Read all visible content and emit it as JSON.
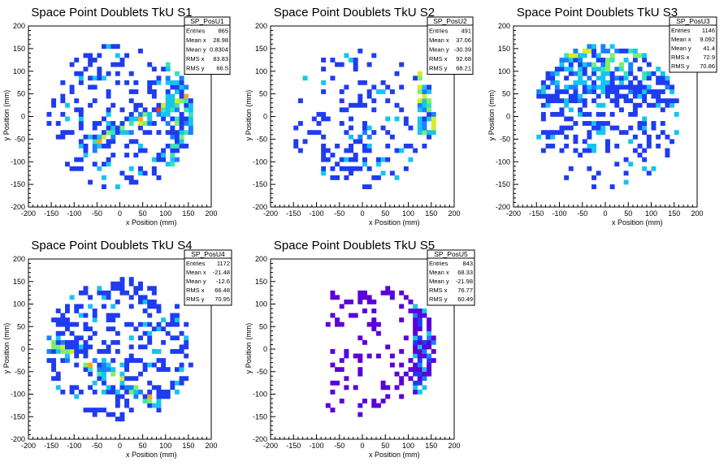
{
  "chart_data": [
    {
      "type": "heatmap",
      "title": "Space Point Doublets TkU S1",
      "xlabel": "x Position (mm)",
      "ylabel": "y Position (mm)",
      "xlim": [
        -200,
        200
      ],
      "ylim": [
        -200,
        200
      ],
      "xticks": [
        -200,
        -150,
        -100,
        -50,
        0,
        50,
        100,
        150,
        200
      ],
      "yticks": [
        -200,
        -150,
        -100,
        -50,
        0,
        50,
        100,
        150,
        200
      ],
      "palette": "rainbow",
      "stats": {
        "name": "SP_PosU1",
        "rows": [
          {
            "label": "Entries",
            "value": "865"
          },
          {
            "label": "Mean x",
            "value": "28.98"
          },
          {
            "label": "Mean y",
            "value": "0.8304"
          },
          {
            "label": "RMS x",
            "value": "83.83"
          },
          {
            "label": "RMS y",
            "value": "66.5"
          }
        ]
      },
      "stats_size": "large",
      "mean_x": 28.98,
      "mean_y": 0.8304,
      "rms_x": 83.83,
      "rms_y": 66.5,
      "fill": 0.42,
      "band": "diagonal-S1",
      "seed": 11
    },
    {
      "type": "heatmap",
      "title": "Space Point Doublets TkU S2",
      "xlabel": "x Position (mm)",
      "ylabel": "y Position (mm)",
      "xlim": [
        -200,
        200
      ],
      "ylim": [
        -200,
        200
      ],
      "xticks": [
        -200,
        -150,
        -100,
        -50,
        0,
        50,
        100,
        150,
        200
      ],
      "yticks": [
        -200,
        -150,
        -100,
        -50,
        0,
        50,
        100,
        150,
        200
      ],
      "palette": "rainbow",
      "stats": {
        "name": "SP_PosU2",
        "rows": [
          {
            "label": "Entries",
            "value": "491"
          },
          {
            "label": "Mean x",
            "value": "37.06"
          },
          {
            "label": "Mean y",
            "value": "-30.39"
          },
          {
            "label": "RMS x",
            "value": "92.68"
          },
          {
            "label": "RMS y",
            "value": "68.21"
          }
        ]
      },
      "stats_size": "large",
      "mean_x": 37.06,
      "mean_y": -30.39,
      "rms_x": 92.68,
      "rms_y": 68.21,
      "fill": 0.26,
      "band": "diagonal-S2",
      "seed": 23
    },
    {
      "type": "heatmap",
      "title": "Space Point Doublets TkU S3",
      "xlabel": "x Position (mm)",
      "ylabel": "y Position (mm)",
      "xlim": [
        -200,
        200
      ],
      "ylim": [
        -200,
        200
      ],
      "xticks": [
        -200,
        -150,
        -100,
        -50,
        0,
        50,
        100,
        150,
        200
      ],
      "yticks": [
        -200,
        -150,
        -100,
        -50,
        0,
        50,
        100,
        150,
        200
      ],
      "palette": "rainbow",
      "stats": {
        "name": "SP_PosU3",
        "rows": [
          {
            "label": "Entries",
            "value": "1146"
          },
          {
            "label": "Mean x",
            "value": "9.092"
          },
          {
            "label": "Mean y",
            "value": "41.4"
          },
          {
            "label": "RMS x",
            "value": "72.9"
          },
          {
            "label": "RMS y",
            "value": "70.86"
          }
        ]
      },
      "stats_size": "small",
      "mean_x": 9.092,
      "mean_y": 41.4,
      "rms_x": 72.9,
      "rms_y": 70.86,
      "fill": 0.55,
      "band": "top-S3",
      "seed": 37
    },
    {
      "type": "heatmap",
      "title": "Space Point Doublets TkU S4",
      "xlabel": "x Position (mm)",
      "ylabel": "y Position (mm)",
      "xlim": [
        -200,
        200
      ],
      "ylim": [
        -200,
        200
      ],
      "xticks": [
        -200,
        -150,
        -100,
        -50,
        0,
        50,
        100,
        150,
        200
      ],
      "yticks": [
        -200,
        -150,
        -100,
        -50,
        0,
        50,
        100,
        150,
        200
      ],
      "palette": "rainbow",
      "stats": {
        "name": "SP_PosU4",
        "rows": [
          {
            "label": "Entries",
            "value": "1172"
          },
          {
            "label": "Mean x",
            "value": "-21.48"
          },
          {
            "label": "Mean y",
            "value": "-12.6"
          },
          {
            "label": "RMS x",
            "value": "66.48"
          },
          {
            "label": "RMS y",
            "value": "70.95"
          }
        ]
      },
      "stats_size": "small",
      "mean_x": -21.48,
      "mean_y": -12.6,
      "rms_x": 66.48,
      "rms_y": 70.95,
      "fill": 0.58,
      "band": "diagonal-S4",
      "seed": 41
    },
    {
      "type": "heatmap",
      "title": "Space Point Doublets TkU S5",
      "xlabel": "x Position (mm)",
      "ylabel": "y Position (mm)",
      "xlim": [
        -200,
        200
      ],
      "ylim": [
        -200,
        200
      ],
      "xticks": [
        -200,
        -150,
        -100,
        -50,
        0,
        50,
        100,
        150,
        200
      ],
      "yticks": [
        -200,
        -150,
        -100,
        -50,
        0,
        50,
        100,
        150,
        200
      ],
      "palette": "violet",
      "stats": {
        "name": "SP_PosU5",
        "rows": [
          {
            "label": "Entries",
            "value": "843"
          },
          {
            "label": "Mean x",
            "value": "68.33"
          },
          {
            "label": "Mean y",
            "value": "-21.98"
          },
          {
            "label": "RMS x",
            "value": "76.77"
          },
          {
            "label": "RMS y",
            "value": "60.49"
          }
        ]
      },
      "stats_size": "small",
      "mean_x": 68.33,
      "mean_y": -21.98,
      "rms_x": 76.77,
      "rms_y": 60.49,
      "fill": 0.3,
      "band": "right-S5",
      "seed": 59
    }
  ],
  "colors": {
    "background": "#ffffff",
    "frame": "#000000",
    "scale": [
      "#5a00d8",
      "#1f3cf0",
      "#1a7fff",
      "#16c4f0",
      "#3ae3b8",
      "#7cf06a",
      "#d8ec2a",
      "#ffa41a",
      "#ff3a10",
      "#c8001e"
    ]
  }
}
